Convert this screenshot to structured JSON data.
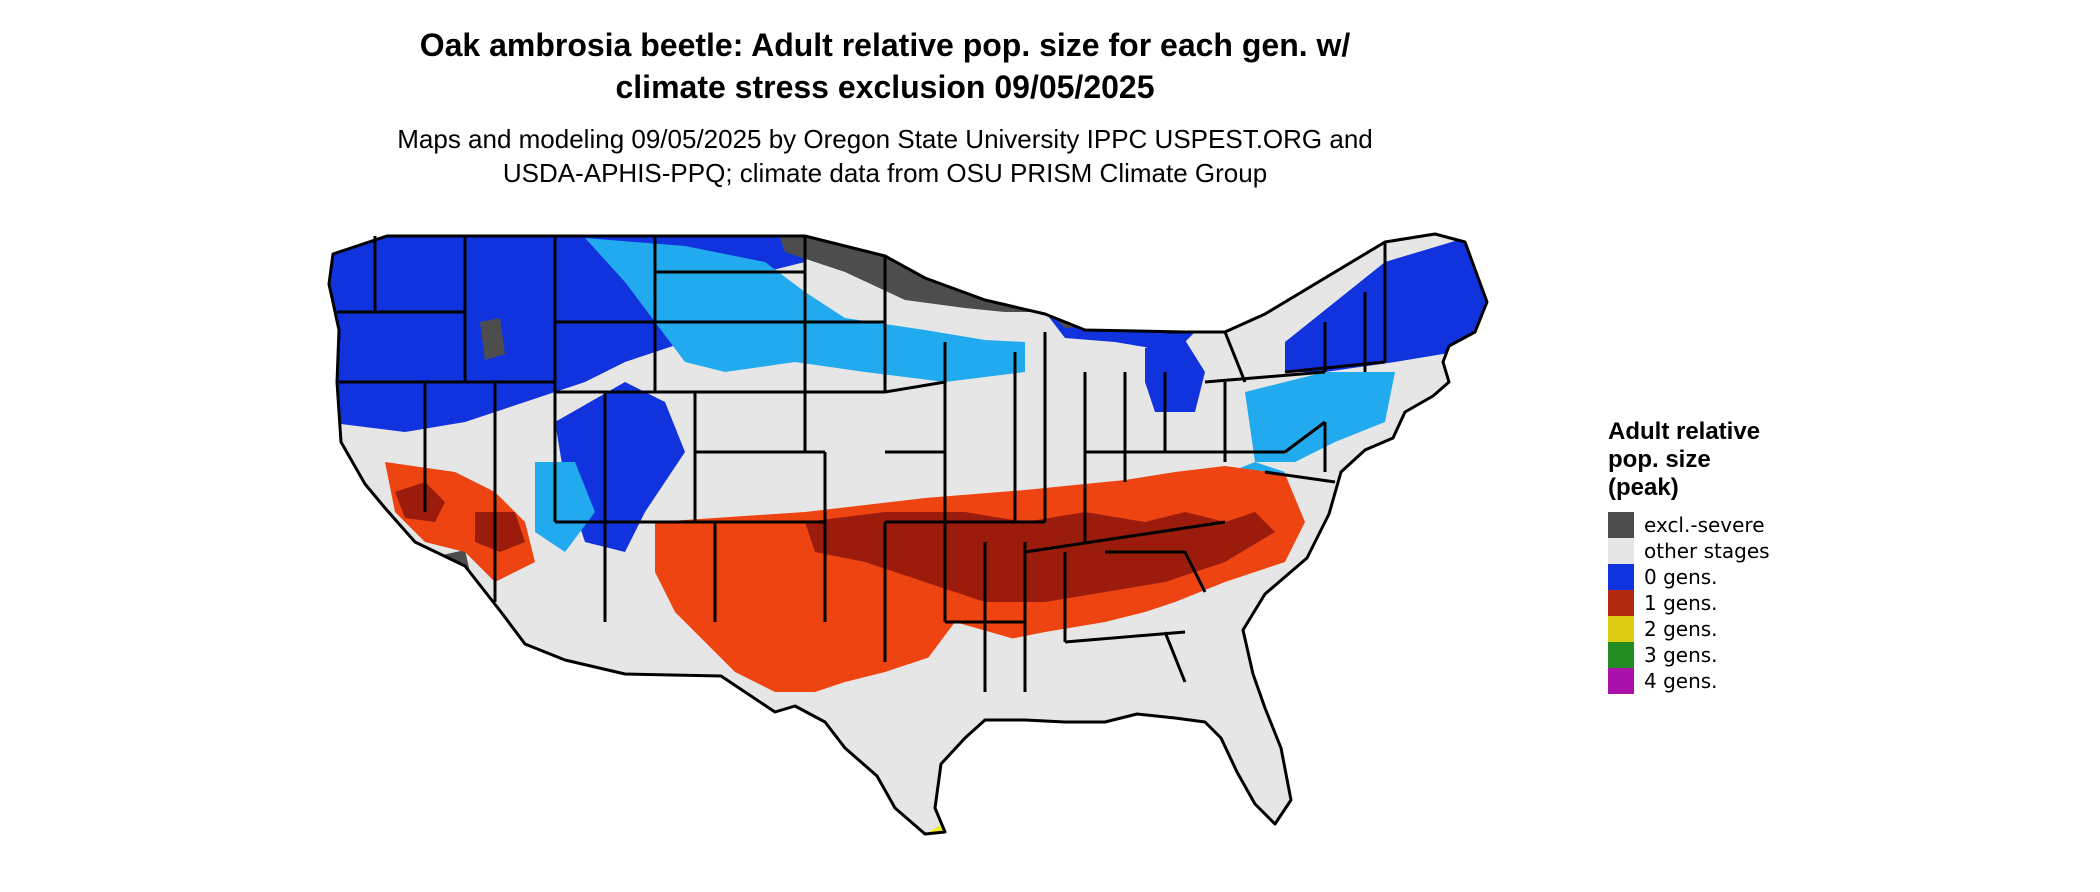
{
  "header": {
    "title_line1": "Oak ambrosia beetle: Adult relative pop. size for each gen. w/",
    "title_line2": "climate stress exclusion 09/05/2025",
    "subtitle_line1": "Maps and modeling 09/05/2025 by Oregon State University IPPC USPEST.ORG and",
    "subtitle_line2": "USDA-APHIS-PPQ; climate data from OSU PRISM Climate Group"
  },
  "legend": {
    "title_line1": "Adult relative",
    "title_line2": "pop. size",
    "title_line3": "(peak)",
    "items": [
      {
        "label": "excl.-severe",
        "color": "#4d4d4d"
      },
      {
        "label": "other stages",
        "color": "#e6e6e6"
      },
      {
        "label": "0 gens.",
        "color": "#1133dd"
      },
      {
        "label": "1 gens.",
        "color": "#b22a10"
      },
      {
        "label": "2 gens.",
        "color": "#ddcc11"
      },
      {
        "label": "3 gens.",
        "color": "#228b22"
      },
      {
        "label": "4 gens.",
        "color": "#aa11aa"
      }
    ]
  },
  "map": {
    "colors": {
      "excluded": "#4d4d4d",
      "other_stages": "#e6e6e6",
      "gen0_dark": "#1133dd",
      "gen0_light": "#22aaee",
      "gen1_orange": "#ee4411",
      "gen1_dark": "#9b1c0c",
      "gen2": "#eeee22",
      "border": "#000000"
    }
  }
}
